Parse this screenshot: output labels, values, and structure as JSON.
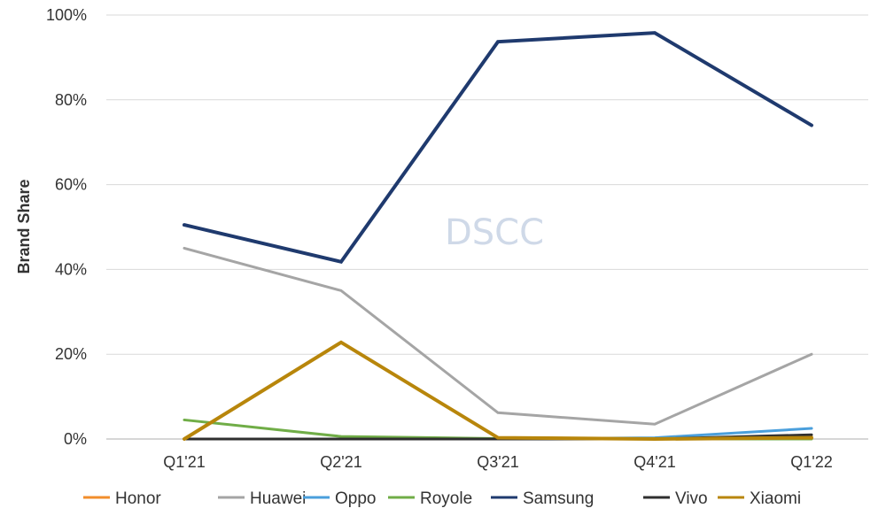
{
  "chart_data": {
    "type": "line",
    "title": "",
    "xlabel": "",
    "ylabel": "Brand Share",
    "categories": [
      "Q1'21",
      "Q2'21",
      "Q3'21",
      "Q4'21",
      "Q1'22"
    ],
    "y_ticks": [
      "0%",
      "20%",
      "40%",
      "60%",
      "80%",
      "100%"
    ],
    "ylim": [
      0,
      100
    ],
    "grid": "horizontal",
    "legend_position": "bottom",
    "watermark": "DSCC",
    "series": [
      {
        "name": "Honor",
        "color": "#f28e2b",
        "values": [
          0,
          0,
          0,
          0,
          0.5
        ]
      },
      {
        "name": "Huawei",
        "color": "#a5a5a5",
        "values": [
          45,
          35,
          6.2,
          3.5,
          20
        ]
      },
      {
        "name": "Oppo",
        "color": "#4a9fdc",
        "values": [
          0,
          0,
          0,
          0.3,
          2.5
        ]
      },
      {
        "name": "Royole",
        "color": "#70ad47",
        "values": [
          4.5,
          0.6,
          0.1,
          0,
          0
        ]
      },
      {
        "name": "Samsung",
        "color": "#1f3a6e",
        "values": [
          50.5,
          41.8,
          93.7,
          95.8,
          74
        ]
      },
      {
        "name": "Vivo",
        "color": "#2f2f2f",
        "values": [
          0,
          0,
          0,
          0,
          1
        ]
      },
      {
        "name": "Xiaomi",
        "color": "#b8860b",
        "values": [
          0,
          22.8,
          0.3,
          0,
          0.3
        ]
      }
    ]
  }
}
